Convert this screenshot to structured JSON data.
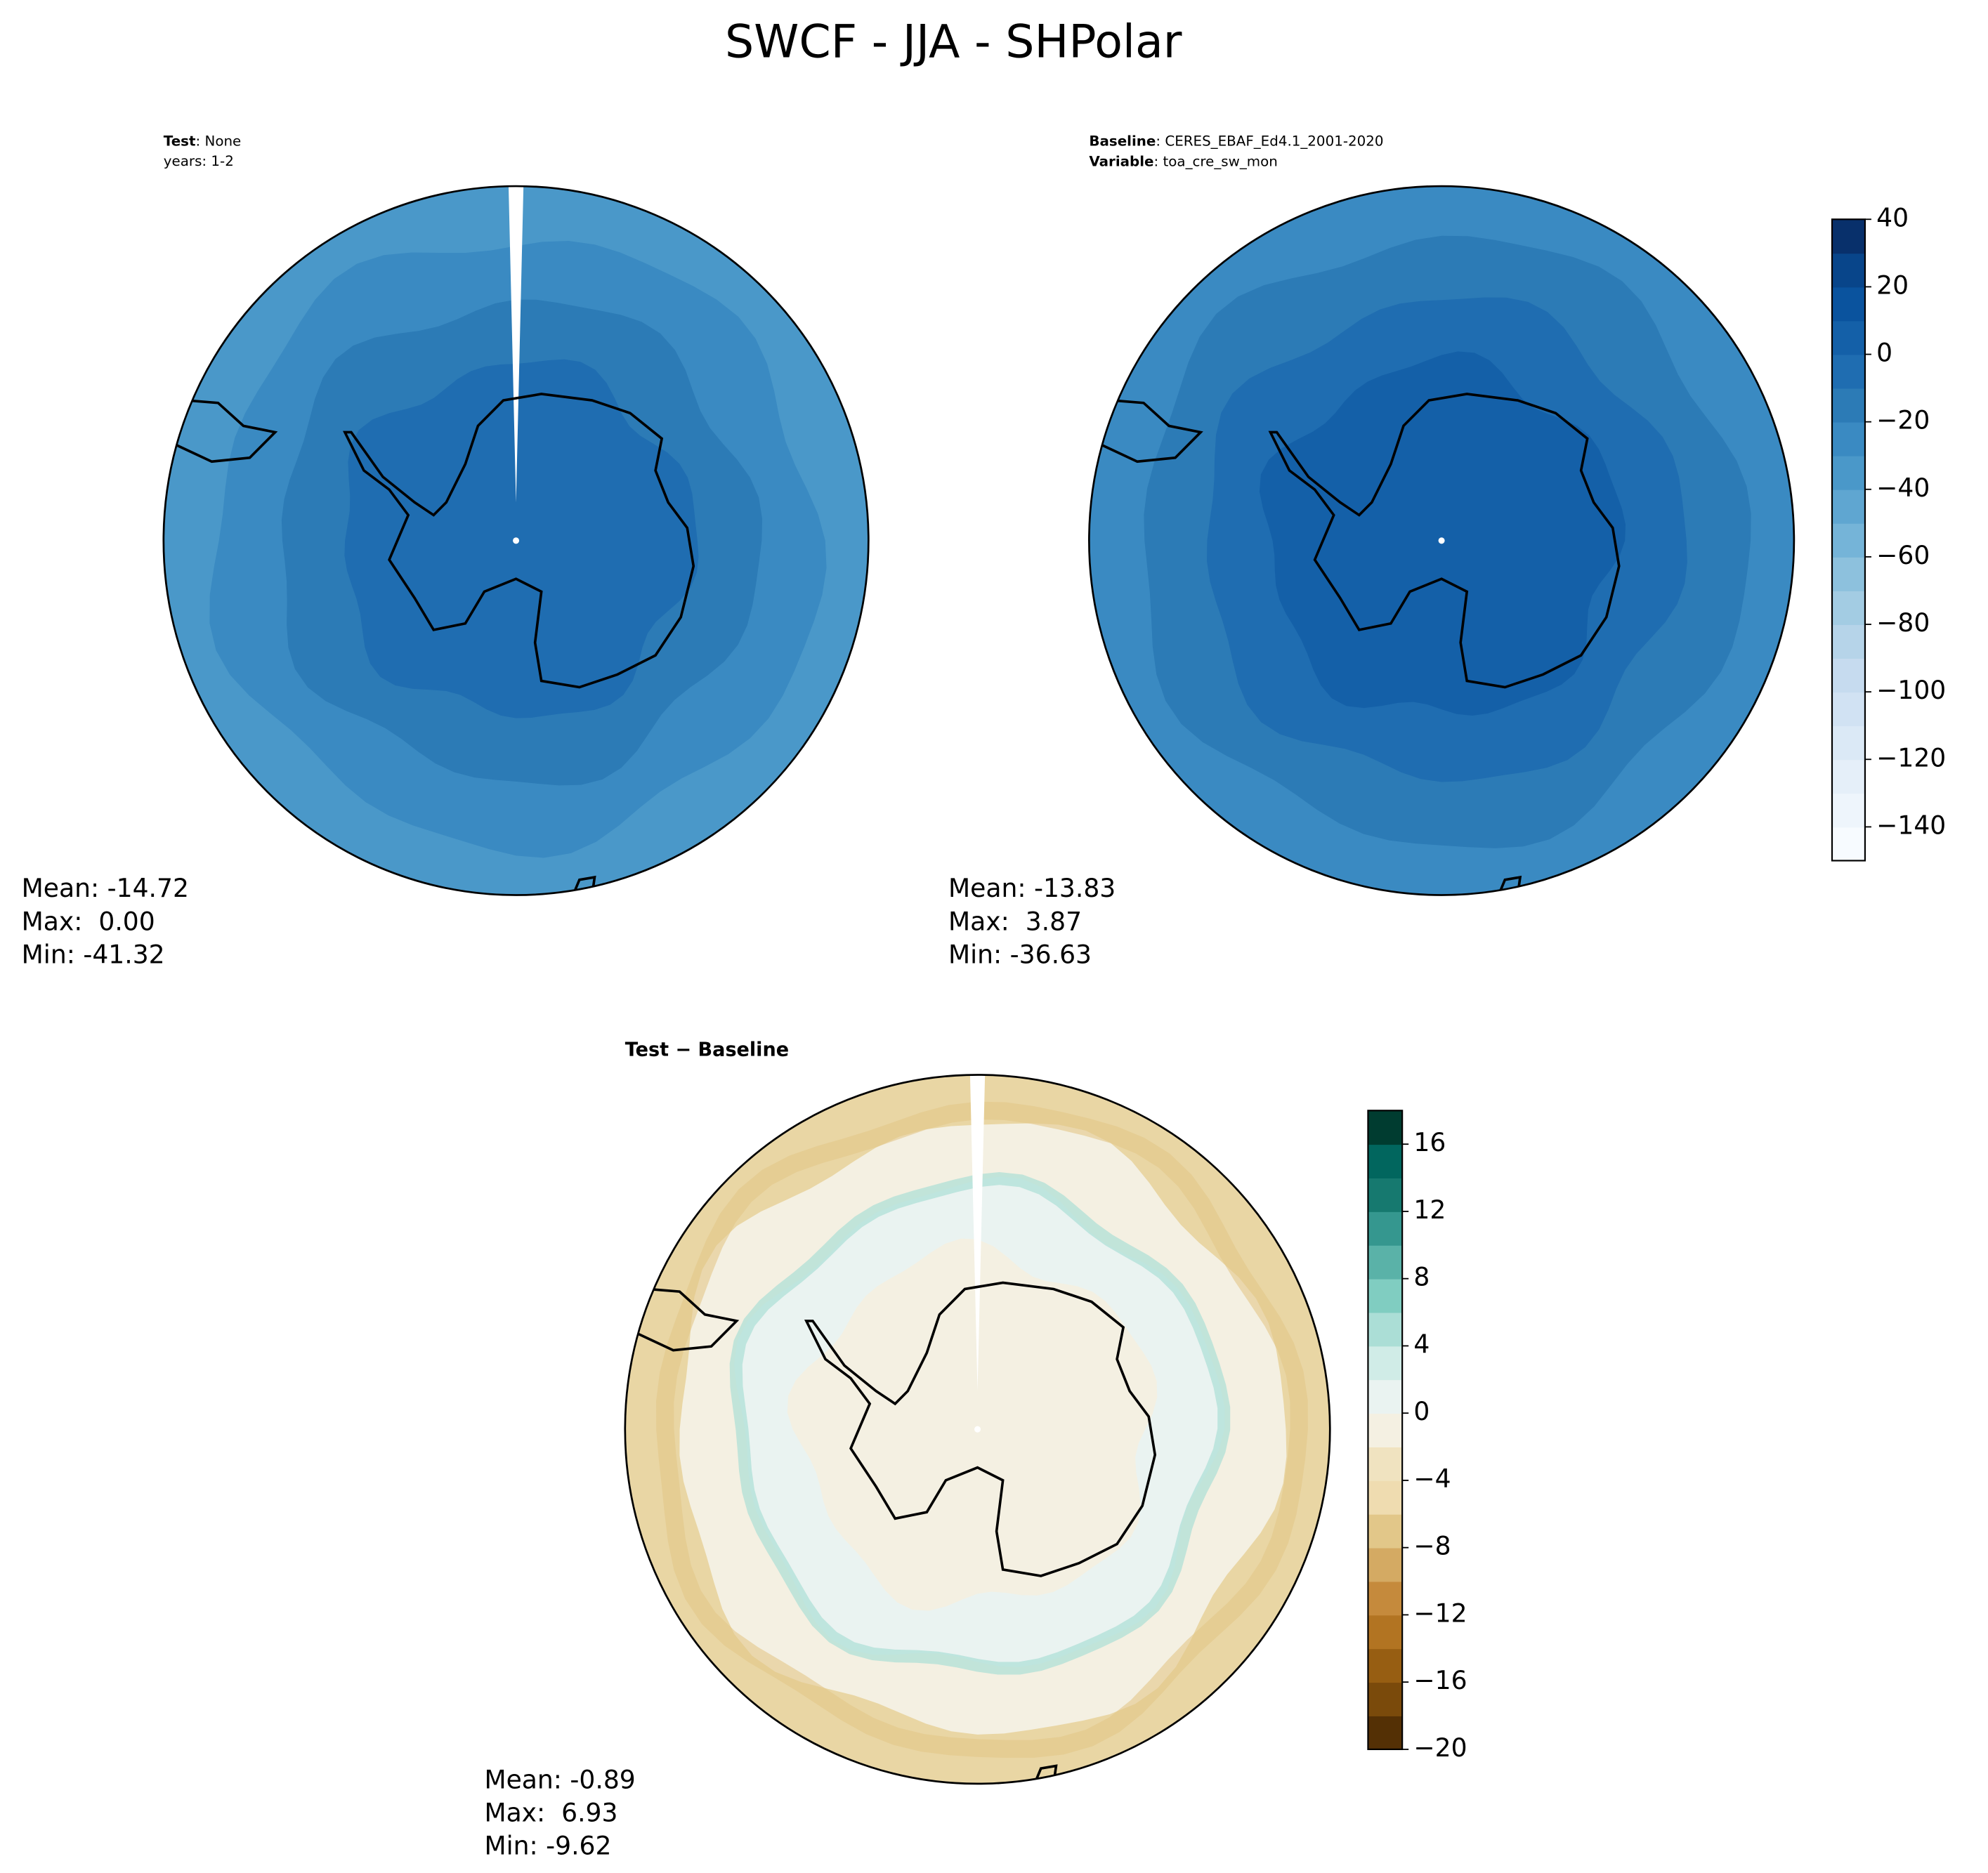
{
  "title": "SWCF - JJA - SHPolar",
  "chart_data": [
    {
      "type": "map",
      "label": "Test",
      "text": ": None",
      "subtext": "years: 1-2",
      "stats": [
        "Mean: -14.72",
        "Max:  0.00",
        "Min: -41.32"
      ]
    },
    {
      "type": "map",
      "label": "Baseline",
      "text": ": CERES_EBAF_Ed4.1_2001-2020",
      "label2": "Variable",
      "text2": ": toa_cre_sw_mon",
      "stats": [
        "Mean: -13.83",
        "Max:  3.87",
        "Min: -36.63"
      ],
      "colorbar": {
        "ylim": [
          -150,
          40
        ],
        "yticks": [
          40,
          20,
          0,
          {
            "value": -20,
            "label": "−20"
          },
          {
            "value": -40,
            "label": "−40"
          },
          {
            "value": -60,
            "label": "−60"
          },
          {
            "value": -80,
            "label": "−80"
          },
          {
            "value": -100,
            "label": "−100"
          },
          {
            "value": -120,
            "label": "−120"
          },
          {
            "value": -140,
            "label": "−140"
          }
        ],
        "colors": [
          "#f7fbff",
          "#eef5fc",
          "#e5eff9",
          "#dbe9f6",
          "#d1e2f3",
          "#c6dbef",
          "#b6d4e9",
          "#a3cce3",
          "#8dc1dd",
          "#75b4d8",
          "#5fa6d1",
          "#4a98c9",
          "#3a8ac2",
          "#2c7bb6",
          "#1f6db1",
          "#1460a8",
          "#0a539e",
          "#08458a",
          "#08306b"
        ]
      }
    },
    {
      "type": "map",
      "title": "Test − Baseline",
      "stats": [
        "Mean: -0.89",
        "Max:  6.93",
        "Min: -9.62"
      ],
      "colorbar": {
        "ylim": [
          -20,
          18
        ],
        "yticks": [
          16,
          12,
          8,
          4,
          0,
          {
            "value": -4,
            "label": "−4"
          },
          {
            "value": -8,
            "label": "−8"
          },
          {
            "value": -12,
            "label": "−12"
          },
          {
            "value": -16,
            "label": "−16"
          },
          {
            "value": -20,
            "label": "−20"
          }
        ],
        "colors": [
          "#543005",
          "#7a4a0b",
          "#975e12",
          "#b27422",
          "#c58a3c",
          "#d4aa63",
          "#e2c789",
          "#efdcb0",
          "#f0e3c0",
          "#f4f0e2",
          "#eaf3f1",
          "#d0ece7",
          "#abded6",
          "#80cdc1",
          "#5ab2a8",
          "#35978f",
          "#16796f",
          "#01665e",
          "#003c30"
        ]
      }
    }
  ]
}
